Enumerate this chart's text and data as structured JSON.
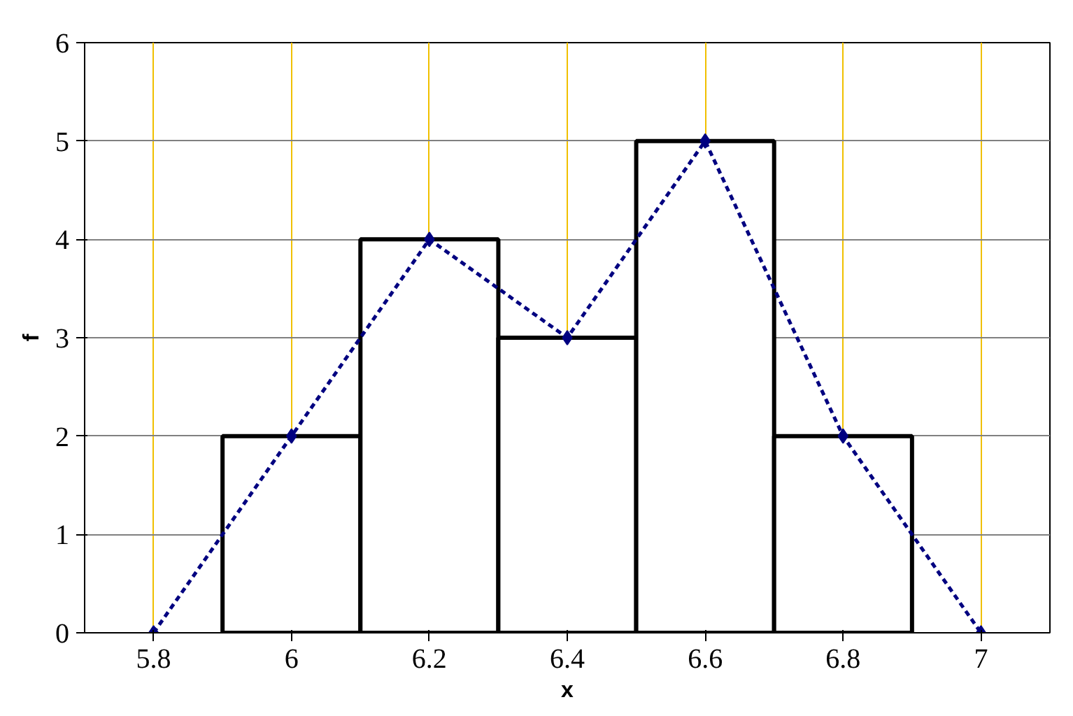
{
  "chart_data": {
    "type": "histogram",
    "xlabel": "x",
    "ylabel": "f",
    "bins": [
      5.9,
      6.1,
      6.3,
      6.5,
      6.7,
      6.9
    ],
    "values": [
      2,
      4,
      3,
      5,
      2
    ],
    "color": "#000000",
    "series": [
      {
        "type": "line",
        "x": [
          5.8,
          6.0,
          6.2,
          6.4,
          6.6,
          6.8,
          7.0
        ],
        "values": [
          0,
          2,
          4,
          3,
          5,
          2,
          0
        ],
        "color": "#000080"
      }
    ],
    "marker": "diamond",
    "line_style": "dashed",
    "xlim": [
      5.7,
      7.1
    ],
    "xticks": [
      5.8,
      6,
      6.2,
      6.4,
      6.6,
      6.8,
      7
    ],
    "ylim": [
      0,
      6
    ],
    "yticks": [
      0,
      1,
      2,
      3,
      4,
      5,
      6
    ],
    "grid": true
  }
}
